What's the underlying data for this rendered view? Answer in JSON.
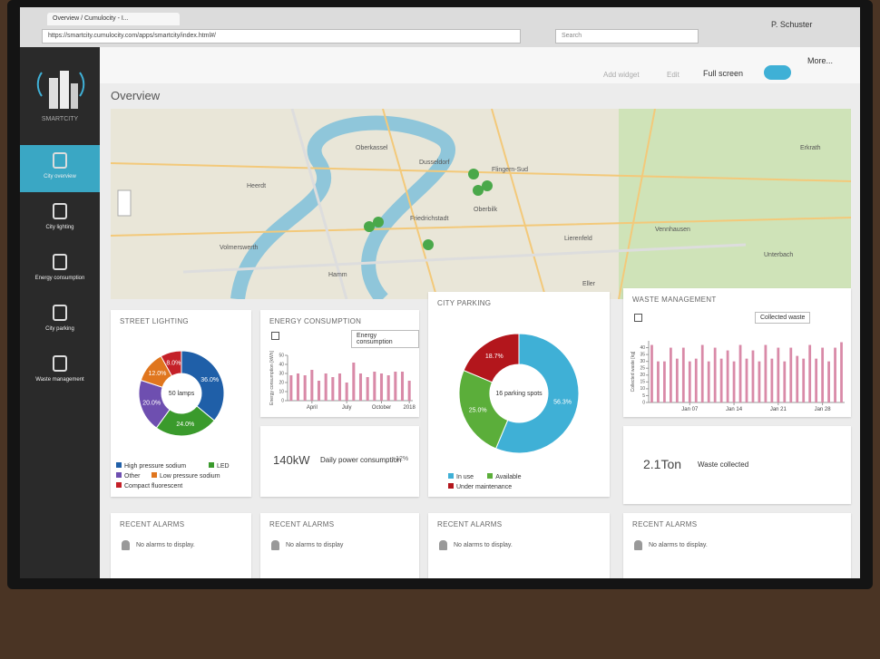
{
  "browser": {
    "tab": "Overview / Cumulocity - I...",
    "url": "https://smartcity.cumulocity.com/apps/smartcity/index.html#/",
    "search": "Search"
  },
  "toolbar": {
    "user": "P. Schuster",
    "add_widget": "Add widget",
    "edit": "Edit",
    "full_screen": "Full screen",
    "more": "More..."
  },
  "sidebar": {
    "brand": "SMARTCITY",
    "items": [
      "City overview",
      "City lighting",
      "Energy consumption",
      "City parking",
      "Waste management"
    ]
  },
  "page_title": "Overview",
  "map": {
    "labels": [
      "Oberkassel",
      "Dusseldorf",
      "Flingern-Sud",
      "Oberbilk",
      "Friedrichstadt",
      "Lierenfeld",
      "Hamm",
      "Eller",
      "Vennhausen",
      "Unterbach",
      "Erkrath",
      "Heerdt",
      "Volmerswerth"
    ],
    "attribution": "Leaflet"
  },
  "street_lighting": {
    "title": "STREET LIGHTING",
    "center_label": "50 lamps",
    "segments": [
      {
        "name": "High pressure sodium",
        "color": "#1f5fa8",
        "value": 36,
        "value_label": "36.0%"
      },
      {
        "name": "LED",
        "color": "#3a9a2c",
        "value": 24,
        "value_label": "24.0%"
      },
      {
        "name": "Other",
        "color": "#6e4fb0",
        "value": 20,
        "value_label": "20.0%"
      },
      {
        "name": "Low pressure sodium",
        "color": "#e0761e",
        "value": 12,
        "value_label": "12.0%"
      },
      {
        "name": "Compact fluorescent",
        "color": "#c42028",
        "value": 8,
        "value_label": "8.0%"
      }
    ]
  },
  "energy": {
    "title": "ENERGY CONSUMPTION",
    "selector": "Energy consumption",
    "y_label": "Energy consumption [kWh]",
    "color": "#d98aa8",
    "categories": [
      null,
      null,
      null,
      "April",
      null,
      null,
      null,
      null,
      "July",
      null,
      null,
      null,
      null,
      "October",
      null,
      null,
      null,
      "2018"
    ],
    "values": [
      28,
      30,
      28,
      34,
      22,
      30,
      26,
      30,
      20,
      42,
      30,
      26,
      32,
      30,
      28,
      32,
      32,
      22
    ],
    "ylim": [
      0,
      50
    ],
    "yticks": [
      0,
      10,
      20,
      30,
      40,
      50
    ]
  },
  "energy_kpi": {
    "value": "140kW",
    "label": "Daily power consumption",
    "change": "+12%"
  },
  "parking": {
    "title": "CITY PARKING",
    "center_label": "16 parking spots",
    "segments": [
      {
        "name": "In use",
        "color": "#3fb0d6",
        "value": 56.3,
        "value_label": "56.3%"
      },
      {
        "name": "Available",
        "color": "#5bae3a",
        "value": 25.0,
        "value_label": "25.0%"
      },
      {
        "name": "Under maintenance",
        "color": "#b3161c",
        "value": 18.7,
        "value_label": "18.7%"
      }
    ]
  },
  "waste": {
    "title": "WASTE MANAGEMENT",
    "selector": "Collected waste",
    "y_label": "Collected waste [kg]",
    "color": "#d98aa8",
    "categories": [
      null,
      null,
      null,
      null,
      null,
      null,
      "Jan 07",
      null,
      null,
      null,
      null,
      null,
      null,
      "Jan 14",
      null,
      null,
      null,
      null,
      null,
      null,
      "Jan 21",
      null,
      null,
      null,
      null,
      null,
      null,
      "Jan 28",
      null,
      null,
      null
    ],
    "values": [
      42,
      30,
      30,
      40,
      32,
      40,
      30,
      32,
      42,
      30,
      40,
      32,
      38,
      30,
      42,
      32,
      38,
      30,
      42,
      32,
      40,
      30,
      40,
      34,
      32,
      42,
      32,
      40,
      30,
      40,
      44
    ],
    "ylim": [
      0,
      45
    ],
    "yticks": [
      0,
      5,
      10,
      15,
      20,
      25,
      30,
      35,
      40
    ]
  },
  "waste_kpi": {
    "value": "2.1Ton",
    "label": "Waste collected"
  },
  "alarms": [
    {
      "title": "RECENT ALARMS",
      "message": "No alarms to display."
    },
    {
      "title": "RECENT ALARMS",
      "message": "No alarms to display"
    },
    {
      "title": "RECENT ALARMS",
      "message": "No alarms to display."
    },
    {
      "title": "RECENT ALARMS",
      "message": "No alarms to display."
    }
  ]
}
